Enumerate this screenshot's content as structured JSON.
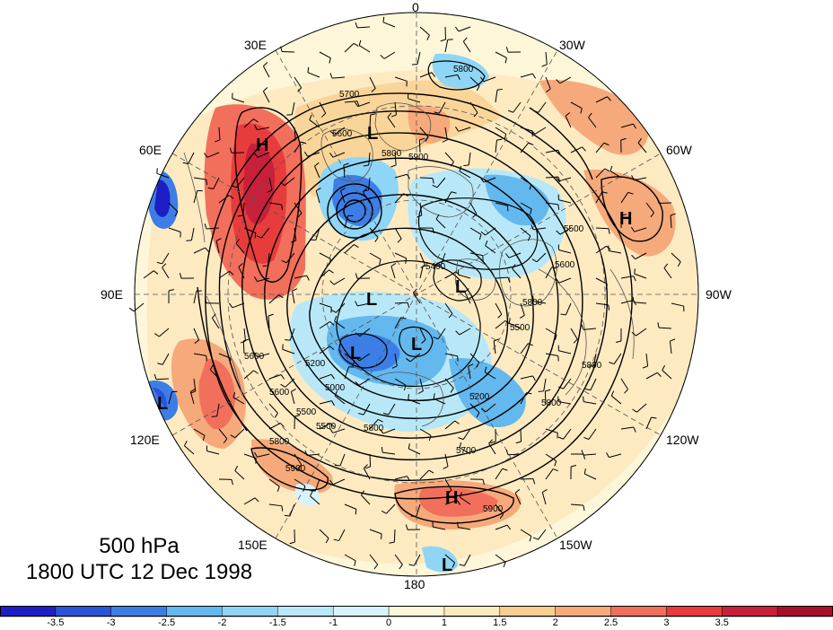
{
  "map": {
    "projection": "polar-stereographic",
    "hemisphere": "north",
    "level": "500 hPa",
    "datetime": "1800 UTC 12 Dec 1998",
    "longitude_labels": [
      {
        "key": "lon_0",
        "text": "0"
      },
      {
        "key": "lon_30w",
        "text": "30W"
      },
      {
        "key": "lon_60w",
        "text": "60W"
      },
      {
        "key": "lon_90w",
        "text": "90W"
      },
      {
        "key": "lon_120w",
        "text": "120W"
      },
      {
        "key": "lon_150w",
        "text": "150W"
      },
      {
        "key": "lon_180",
        "text": "180"
      },
      {
        "key": "lon_150e",
        "text": "150E"
      },
      {
        "key": "lon_120e",
        "text": "120E"
      },
      {
        "key": "lon_90e",
        "text": "90E"
      },
      {
        "key": "lon_60e",
        "text": "60E"
      },
      {
        "key": "lon_30e",
        "text": "30E"
      }
    ],
    "pressure_centers": [
      {
        "type": "H",
        "near": "Ural region"
      },
      {
        "type": "H",
        "near": "eastern North America"
      },
      {
        "type": "H",
        "near": "North Pacific"
      },
      {
        "type": "L",
        "near": "Scandinavia"
      },
      {
        "type": "L",
        "near": "Siberia"
      },
      {
        "type": "L",
        "near": "East Siberia"
      },
      {
        "type": "L",
        "near": "Arctic Canada"
      },
      {
        "type": "L",
        "near": "Central Asia"
      },
      {
        "type": "L",
        "near": "East Asia"
      },
      {
        "type": "L",
        "near": "Pacific"
      }
    ],
    "contour_labels": [
      "5800",
      "5700",
      "5600",
      "5800",
      "5500",
      "5400",
      "5200",
      "5000",
      "5500",
      "5600",
      "5800",
      "5800",
      "5900",
      "5900",
      "5700",
      "5200",
      "5800",
      "5500",
      "5600",
      "5800",
      "5600",
      "5500",
      "5800",
      "5900"
    ],
    "colors": {
      "strong_positive": "#c8203a",
      "positive": "#f26f5c",
      "weak_positive": "#fde9bf",
      "weak_negative": "#d7f3fb",
      "negative": "#63b8ee",
      "strong_negative": "#2a55d8"
    }
  },
  "colorbar": {
    "ticks": [
      "-3.5",
      "-3",
      "-2.5",
      "-2",
      "-1.5",
      "-1",
      "0",
      "1",
      "1.5",
      "2",
      "2.5",
      "3",
      "3.5"
    ],
    "colors": [
      "#1d1fc4",
      "#2a55d8",
      "#3d7ee6",
      "#63b8ee",
      "#8fd5f5",
      "#b8e8f7",
      "#d7f3fb",
      "#fdf6d8",
      "#fde9bf",
      "#f9cf8f",
      "#f6a97a",
      "#f26f5c",
      "#e83c3c",
      "#c8203a",
      "#a8102a"
    ]
  }
}
